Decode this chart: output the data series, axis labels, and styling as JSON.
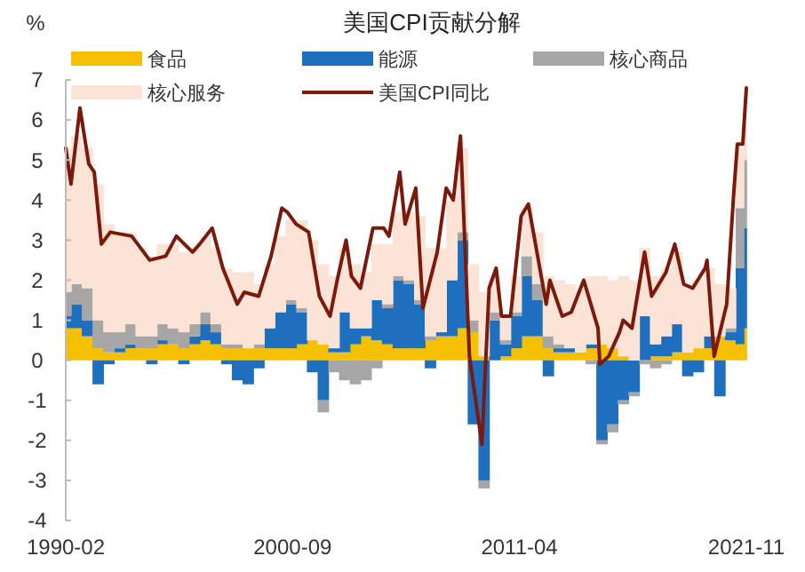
{
  "chart_data": {
    "type": "bar",
    "stacked": true,
    "title": "美国CPI贡献分解",
    "ylabel": "%",
    "legend": "top",
    "grid": false,
    "x": [
      "1990-02",
      "1990-08",
      "1991-02",
      "1991-08",
      "1992-02",
      "1992-08",
      "1993-02",
      "1993-08",
      "1994-02",
      "1994-08",
      "1995-02",
      "1995-08",
      "1996-02",
      "1996-08",
      "1997-02",
      "1997-08",
      "1998-02",
      "1998-08",
      "1999-02",
      "1999-08",
      "2000-02",
      "2000-08",
      "2001-02",
      "2001-08",
      "2002-02",
      "2002-08",
      "2003-02",
      "2003-08",
      "2004-02",
      "2004-08",
      "2005-02",
      "2005-08",
      "2006-02",
      "2006-08",
      "2007-02",
      "2007-08",
      "2008-02",
      "2008-08",
      "2009-02",
      "2009-08",
      "2010-02",
      "2010-08",
      "2011-02",
      "2011-08",
      "2012-02",
      "2012-08",
      "2013-02",
      "2013-08",
      "2014-02",
      "2014-08",
      "2015-02",
      "2015-08",
      "2016-02",
      "2016-08",
      "2017-02",
      "2017-08",
      "2018-02",
      "2018-08",
      "2019-02",
      "2019-08",
      "2020-02",
      "2020-08",
      "2021-02",
      "2021-08",
      "2021-11"
    ],
    "xlim": [
      "1990-02",
      "2021-11"
    ],
    "xticks": [
      "1990-02",
      "2000-09",
      "2011-04",
      "2021-11"
    ],
    "ylim": [
      -4,
      7
    ],
    "yticks": [
      -4,
      -3,
      -2,
      -1,
      0,
      1,
      2,
      3,
      4,
      5,
      6,
      7
    ],
    "series": [
      {
        "name": "食品",
        "color": "#f5c000",
        "values": [
          0.8,
          0.8,
          0.6,
          0.3,
          0.2,
          0.2,
          0.3,
          0.3,
          0.3,
          0.4,
          0.4,
          0.3,
          0.4,
          0.5,
          0.4,
          0.3,
          0.3,
          0.3,
          0.3,
          0.3,
          0.3,
          0.3,
          0.4,
          0.5,
          0.4,
          0.2,
          0.2,
          0.4,
          0.6,
          0.5,
          0.4,
          0.3,
          0.3,
          0.3,
          0.5,
          0.6,
          0.6,
          0.8,
          0.7,
          0.1,
          0.0,
          0.1,
          0.3,
          0.6,
          0.6,
          0.3,
          0.2,
          0.2,
          0.2,
          0.3,
          0.4,
          0.3,
          0.1,
          0.0,
          0.0,
          0.1,
          0.1,
          0.2,
          0.2,
          0.3,
          0.3,
          0.6,
          0.5,
          0.4,
          0.8
        ]
      },
      {
        "name": "能源",
        "color": "#1f6fbf",
        "values": [
          0.3,
          0.6,
          0.4,
          -0.6,
          -0.1,
          0.1,
          0.1,
          0.0,
          -0.1,
          0.1,
          0.0,
          -0.1,
          0.2,
          0.4,
          0.3,
          -0.1,
          -0.5,
          -0.6,
          -0.2,
          0.5,
          0.9,
          1.1,
          0.8,
          -0.3,
          -1.0,
          0.1,
          1.0,
          0.4,
          0.2,
          1.0,
          0.9,
          1.7,
          1.6,
          1.1,
          -0.2,
          0.1,
          1.4,
          2.2,
          -1.6,
          -3.0,
          1.0,
          0.3,
          0.8,
          1.5,
          0.9,
          -0.4,
          0.1,
          0.1,
          0.0,
          0.1,
          -2.0,
          -1.6,
          -1.0,
          -0.8,
          1.1,
          0.3,
          0.5,
          0.7,
          -0.4,
          -0.3,
          0.3,
          -0.9,
          0.2,
          1.9,
          2.5
        ]
      },
      {
        "name": "核心商品",
        "color": "#a6a6a6",
        "values": [
          0.6,
          0.5,
          0.8,
          0.7,
          0.5,
          0.4,
          0.5,
          0.3,
          0.3,
          0.4,
          0.4,
          0.4,
          0.3,
          0.3,
          0.2,
          0.1,
          0.1,
          0.0,
          0.1,
          0.0,
          0.0,
          0.1,
          0.1,
          0.0,
          -0.3,
          -0.3,
          -0.5,
          -0.6,
          -0.5,
          -0.2,
          0.1,
          0.1,
          0.1,
          0.1,
          0.1,
          0.0,
          0.0,
          0.2,
          0.3,
          -0.2,
          0.2,
          0.1,
          0.1,
          0.5,
          0.4,
          0.3,
          0.1,
          0.0,
          0.0,
          -0.1,
          -0.1,
          -0.2,
          -0.1,
          -0.1,
          -0.1,
          -0.2,
          -0.1,
          0.0,
          0.0,
          0.0,
          0.0,
          0.0,
          0.1,
          1.5,
          1.7
        ]
      },
      {
        "name": "核心服务",
        "color": "#fbe3d6",
        "values": [
          3.6,
          3.7,
          3.5,
          3.4,
          2.7,
          2.5,
          2.3,
          2.2,
          2.0,
          2.0,
          2.1,
          2.0,
          1.9,
          1.9,
          1.9,
          1.9,
          1.8,
          1.9,
          1.5,
          1.6,
          1.9,
          2.0,
          2.2,
          2.5,
          2.0,
          1.8,
          1.6,
          1.6,
          1.4,
          1.4,
          1.5,
          1.6,
          1.7,
          2.1,
          2.2,
          2.1,
          2.0,
          2.1,
          1.4,
          1.6,
          0.9,
          0.6,
          0.9,
          1.2,
          1.3,
          1.5,
          1.6,
          1.6,
          1.6,
          1.7,
          1.7,
          1.7,
          2.0,
          2.0,
          1.7,
          1.7,
          1.7,
          1.8,
          1.7,
          1.7,
          1.7,
          1.3,
          1.0,
          1.5,
          0.9
        ]
      },
      {
        "name": "美国CPI同比",
        "type": "line",
        "color": "#7b1a0c",
        "line_style": "solid",
        "marker": "none",
        "x": [
          "1990-02",
          "1990-05",
          "1990-10",
          "1991-03",
          "1991-06",
          "1991-10",
          "1992-03",
          "1993-03",
          "1994-01",
          "1994-10",
          "1995-04",
          "1996-01",
          "1996-05",
          "1996-12",
          "1997-06",
          "1998-02",
          "1998-06",
          "1999-02",
          "1999-09",
          "2000-03",
          "2000-06",
          "2000-11",
          "2001-06",
          "2001-12",
          "2002-06",
          "2002-10",
          "2003-03",
          "2003-06",
          "2003-11",
          "2004-06",
          "2004-12",
          "2005-03",
          "2005-09",
          "2005-12",
          "2006-06",
          "2006-10",
          "2007-06",
          "2007-11",
          "2008-03",
          "2008-07",
          "2008-12",
          "2009-07",
          "2009-11",
          "2010-03",
          "2010-06",
          "2010-11",
          "2011-05",
          "2011-09",
          "2012-07",
          "2012-09",
          "2013-04",
          "2013-09",
          "2014-04",
          "2014-12",
          "2015-01",
          "2015-06",
          "2015-12",
          "2016-02",
          "2016-07",
          "2017-02",
          "2017-06",
          "2018-02",
          "2018-07",
          "2018-12",
          "2019-05",
          "2019-12",
          "2020-01",
          "2020-05",
          "2020-12",
          "2021-04",
          "2021-06",
          "2021-09",
          "2021-11"
        ],
        "values": [
          5.3,
          4.4,
          6.3,
          4.9,
          4.7,
          2.9,
          3.2,
          3.1,
          2.5,
          2.6,
          3.1,
          2.7,
          2.9,
          3.3,
          2.3,
          1.4,
          1.7,
          1.6,
          2.6,
          3.8,
          3.7,
          3.4,
          3.2,
          1.6,
          1.1,
          2.0,
          3.0,
          2.1,
          1.8,
          3.3,
          3.3,
          3.1,
          4.7,
          3.4,
          4.3,
          1.3,
          2.7,
          4.3,
          4.0,
          5.6,
          0.1,
          -2.1,
          1.8,
          2.3,
          1.1,
          1.1,
          3.6,
          3.9,
          1.4,
          2.0,
          1.1,
          1.2,
          2.0,
          0.8,
          -0.1,
          0.1,
          0.7,
          1.0,
          0.8,
          2.7,
          1.6,
          2.2,
          2.9,
          1.9,
          1.8,
          2.3,
          2.5,
          0.1,
          1.4,
          4.2,
          5.4,
          5.4,
          6.8
        ]
      }
    ]
  }
}
